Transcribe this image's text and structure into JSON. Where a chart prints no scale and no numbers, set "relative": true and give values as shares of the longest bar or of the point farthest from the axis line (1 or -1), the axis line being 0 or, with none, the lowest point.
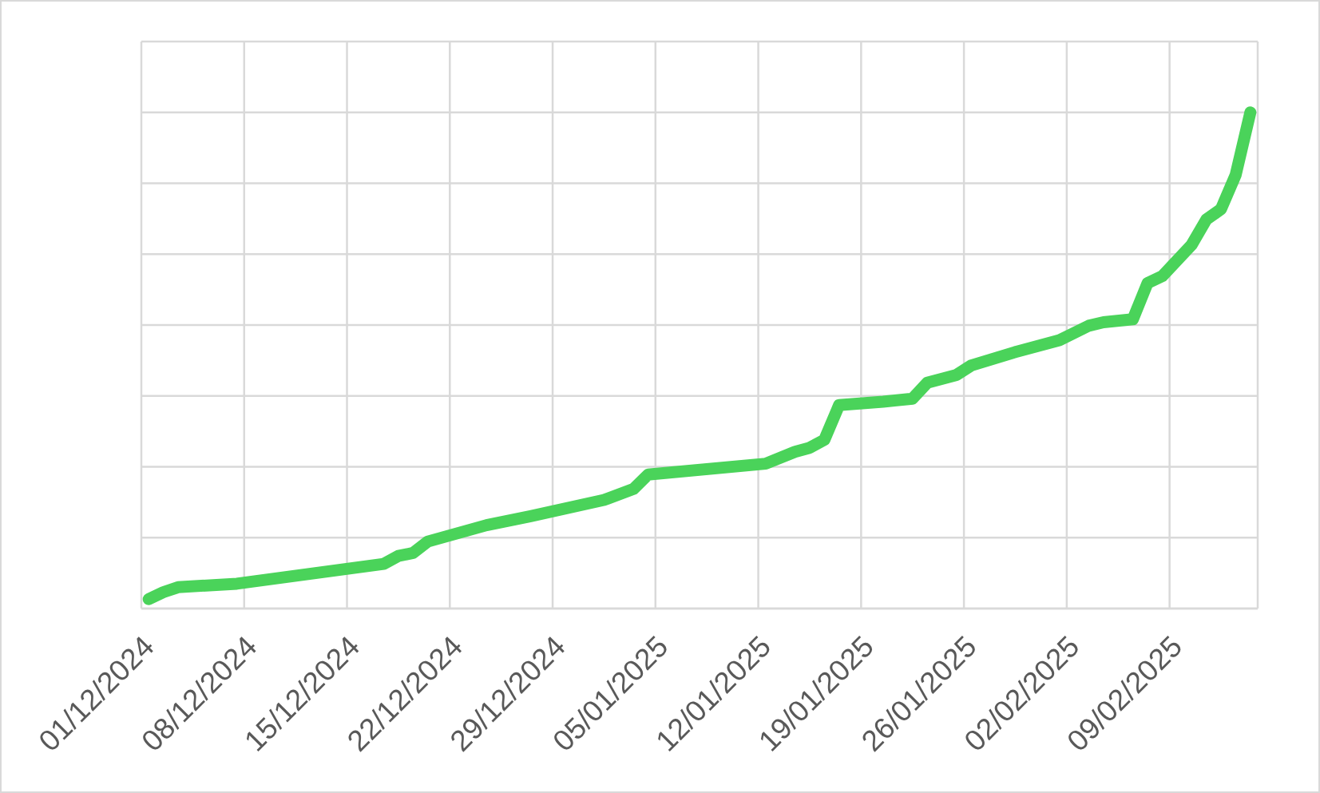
{
  "chart_data": {
    "type": "line",
    "relative": true,
    "color": "#4ad35a",
    "x": [
      "2024-12-01T12:00",
      "2024-12-02T12:00",
      "2024-12-03T12:00",
      "2024-12-07T12:00",
      "2024-12-17T12:00",
      "2024-12-18T12:00",
      "2024-12-19T12:00",
      "2024-12-20T12:00",
      "2024-12-24T12:00",
      "2024-12-27T12:00",
      "2025-01-01T12:00",
      "2025-01-03T12:00",
      "2025-01-04T12:00",
      "2025-01-12T12:00",
      "2025-01-14T12:00",
      "2025-01-15T12:00",
      "2025-01-16T12:00",
      "2025-01-17T12:00",
      "2025-01-20T12:00",
      "2025-01-22T12:00",
      "2025-01-23T12:00",
      "2025-01-25T12:00",
      "2025-01-26T12:00",
      "2025-01-29T12:00",
      "2025-02-01T12:00",
      "2025-02-03T12:00",
      "2025-02-04T12:00",
      "2025-02-06T12:00",
      "2025-02-07T12:00",
      "2025-02-08T12:00",
      "2025-02-10T12:00",
      "2025-02-11T12:00",
      "2025-02-12T12:00",
      "2025-02-13T12:00",
      "2025-02-14T12:00"
    ],
    "values": [
      0.019,
      0.033,
      0.043,
      0.05,
      0.09,
      0.106,
      0.112,
      0.135,
      0.168,
      0.186,
      0.219,
      0.241,
      0.27,
      0.292,
      0.316,
      0.324,
      0.34,
      0.41,
      0.417,
      0.423,
      0.455,
      0.471,
      0.49,
      0.517,
      0.541,
      0.57,
      0.577,
      0.583,
      0.656,
      0.67,
      0.733,
      0.784,
      0.805,
      0.874,
      1
    ],
    "xlim": [
      "2024-12-01",
      "2025-02-15"
    ],
    "xticks": [
      {
        "value": "2024-12-01",
        "label": "01/12/2024"
      },
      {
        "value": "2024-12-08",
        "label": "08/12/2024"
      },
      {
        "value": "2024-12-15",
        "label": "15/12/2024"
      },
      {
        "value": "2024-12-22",
        "label": "22/12/2024"
      },
      {
        "value": "2024-12-29",
        "label": "29/12/2024"
      },
      {
        "value": "2025-01-05",
        "label": "05/01/2025"
      },
      {
        "value": "2025-01-12",
        "label": "12/01/2025"
      },
      {
        "value": "2025-01-19",
        "label": "19/01/2025"
      },
      {
        "value": "2025-01-26",
        "label": "26/01/2025"
      },
      {
        "value": "2025-02-02",
        "label": "02/02/2025"
      },
      {
        "value": "2025-02-09",
        "label": "09/02/2025"
      }
    ],
    "grid": true
  }
}
